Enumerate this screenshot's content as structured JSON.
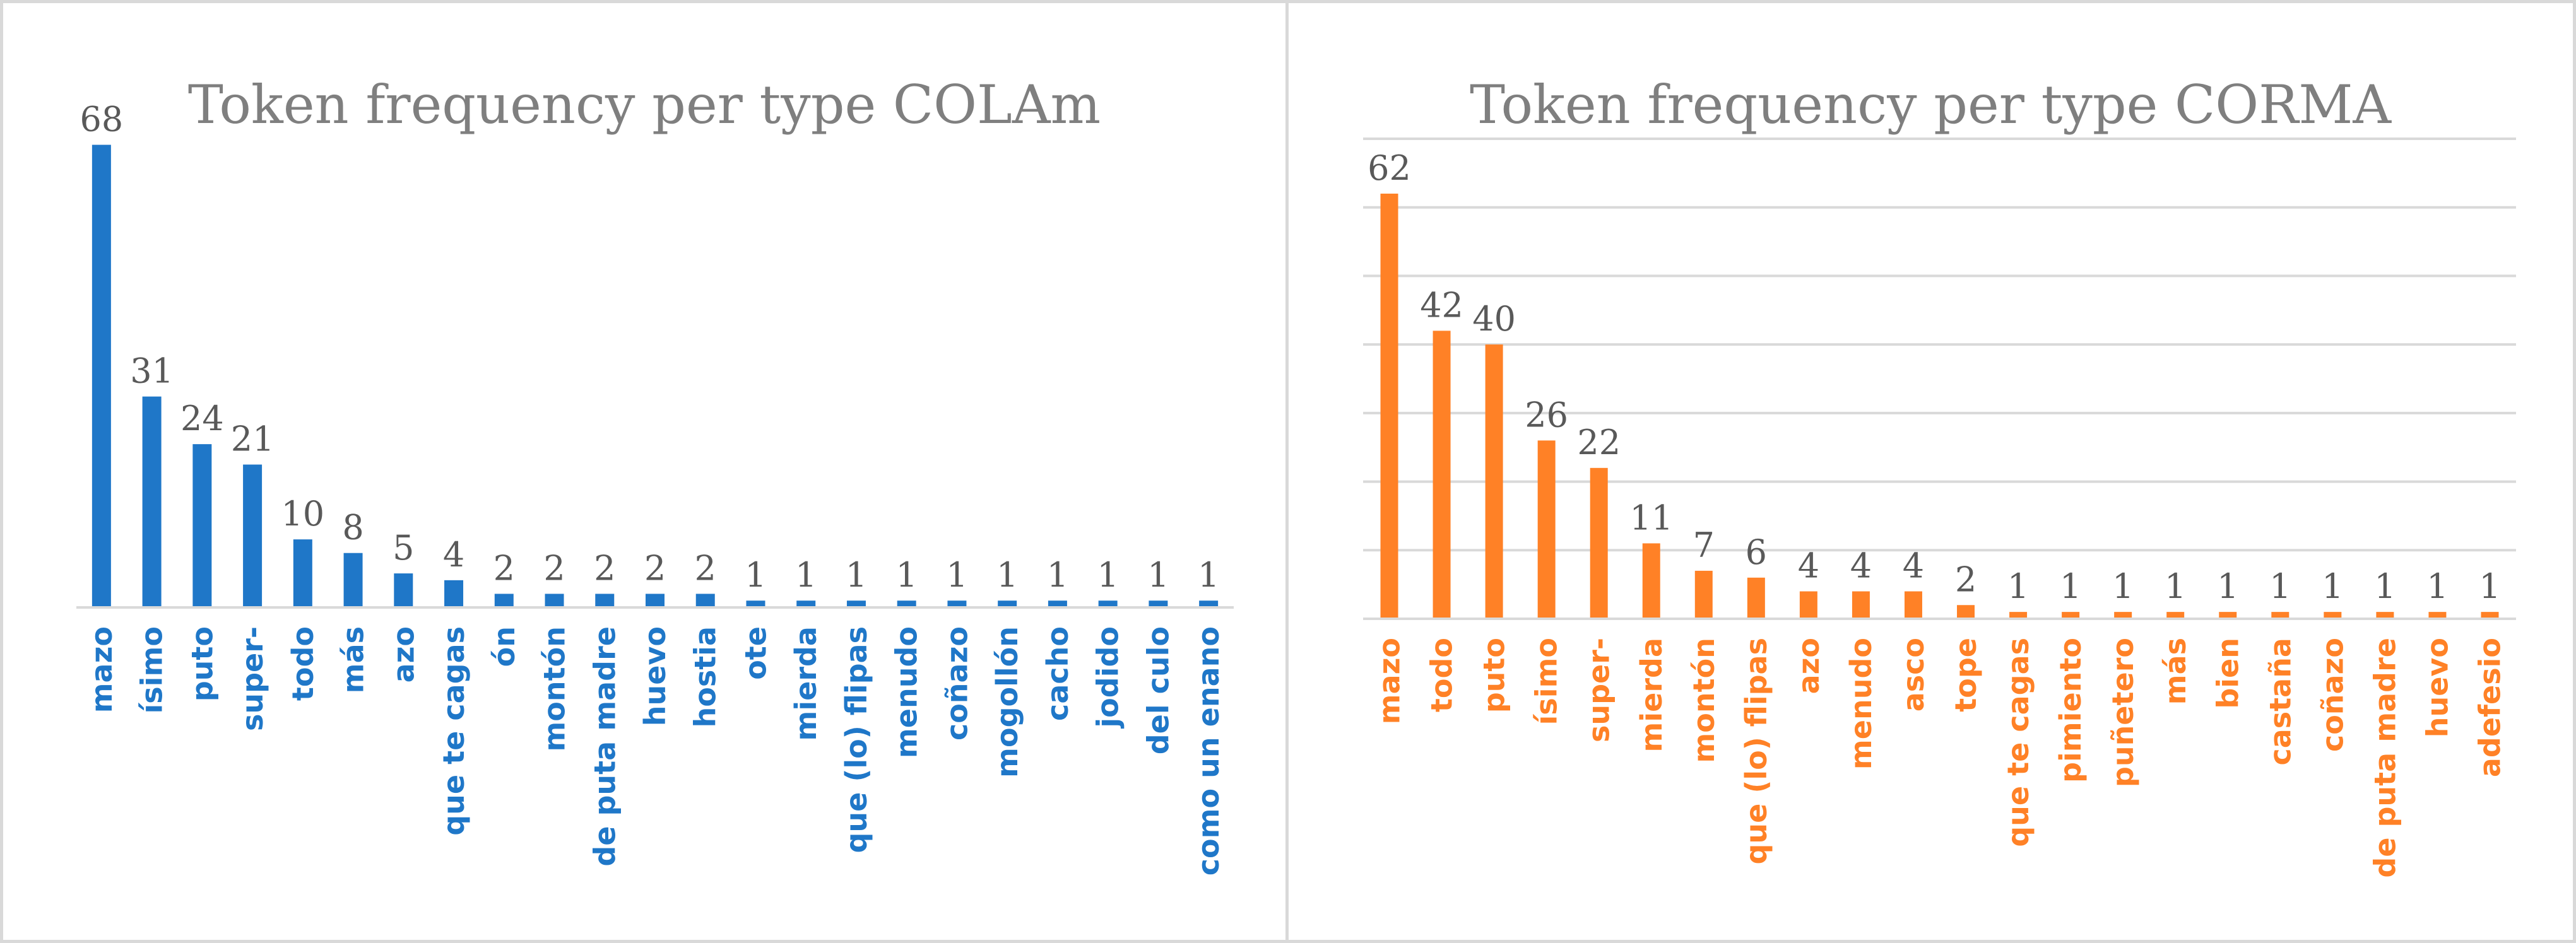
{
  "chart_data": [
    {
      "type": "bar",
      "title": "Token frequency per type COLAm",
      "color": "#1f77c8",
      "gridlines": false,
      "ylim": [
        0,
        70
      ],
      "categories": [
        "mazo",
        "ísimo",
        "puto",
        "super-",
        "todo",
        "más",
        "azo",
        "que te cagas",
        "ón",
        "montón",
        "de puta madre",
        "huevo",
        "hostia",
        "ote",
        "mierda",
        "que (lo) flipas",
        "menudo",
        "coñazo",
        "mogollón",
        "cacho",
        "jodido",
        "del culo",
        "como un enano"
      ],
      "values": [
        68,
        31,
        24,
        21,
        10,
        8,
        5,
        4,
        2,
        2,
        2,
        2,
        2,
        1,
        1,
        1,
        1,
        1,
        1,
        1,
        1,
        1,
        1
      ]
    },
    {
      "type": "bar",
      "title": "Token frequency per type CORMA",
      "color": "#ff8126",
      "gridlines": true,
      "ylim": [
        0,
        70
      ],
      "categories": [
        "mazo",
        "todo",
        "puto",
        "ísimo",
        "super-",
        "mierda",
        "montón",
        "que (lo) flipas",
        "azo",
        "menudo",
        "asco",
        "tope",
        "que te cagas",
        "pimiento",
        "puñetero",
        "más",
        "bien",
        "castaña",
        "coñazo",
        "de puta madre",
        "huevo",
        "adefesio"
      ],
      "values": [
        62,
        42,
        40,
        26,
        22,
        11,
        7,
        6,
        4,
        4,
        4,
        2,
        1,
        1,
        1,
        1,
        1,
        1,
        1,
        1,
        1,
        1
      ]
    }
  ]
}
